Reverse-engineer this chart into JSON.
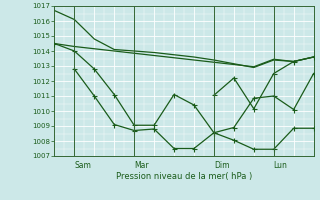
{
  "bg_color": "#cce8e8",
  "grid_color": "#aadddd",
  "line_color": "#1a5c1a",
  "title": "Pression niveau de la mer( hPa )",
  "ylim": [
    1007,
    1017
  ],
  "yticks": [
    1007,
    1008,
    1009,
    1010,
    1011,
    1012,
    1013,
    1014,
    1015,
    1016,
    1017
  ],
  "x_tick_labels": [
    "Sam",
    "Mar",
    "Dim",
    "Lun"
  ],
  "x_tick_pos": [
    2,
    8,
    16,
    22
  ],
  "xlim": [
    0,
    26
  ],
  "lines": [
    {
      "x": [
        0,
        2,
        4,
        6,
        8,
        10,
        12,
        14,
        16,
        18,
        20,
        22,
        24,
        26
      ],
      "y": [
        1016.7,
        1016.1,
        1014.8,
        1014.1,
        1014.0,
        1013.9,
        1013.75,
        1013.6,
        1013.4,
        1013.15,
        1012.9,
        1013.4,
        1013.3,
        1013.6
      ],
      "markers": false,
      "lw": 0.9
    },
    {
      "x": [
        0,
        2,
        4,
        6,
        8,
        10,
        12,
        14,
        16,
        18,
        20,
        22,
        24,
        26
      ],
      "y": [
        1014.5,
        1014.3,
        1014.15,
        1014.0,
        1013.85,
        1013.7,
        1013.55,
        1013.4,
        1013.25,
        1013.1,
        1012.95,
        1013.45,
        1013.3,
        1013.6
      ],
      "markers": false,
      "lw": 0.9
    },
    {
      "x": [
        0,
        2,
        4,
        6,
        8,
        10,
        12,
        14,
        16,
        18,
        20,
        22,
        24,
        26
      ],
      "y": [
        1014.5,
        1014.0,
        1012.8,
        1011.1,
        1009.05,
        1009.05,
        1011.1,
        1010.4,
        1008.55,
        1008.05,
        1007.45,
        1007.45,
        1008.85,
        1008.85
      ],
      "markers": true,
      "lw": 0.9
    },
    {
      "x": [
        2,
        4,
        6,
        8,
        10,
        12,
        14,
        16,
        18,
        20,
        22,
        24,
        26
      ],
      "y": [
        1012.8,
        1011.0,
        1009.1,
        1008.7,
        1008.8,
        1007.5,
        1007.5,
        1008.55,
        1008.9,
        1010.85,
        1011.0,
        1010.1,
        1012.5
      ],
      "markers": true,
      "lw": 0.9
    },
    {
      "x": [
        16,
        18,
        20,
        22,
        24,
        26
      ],
      "y": [
        1011.05,
        1012.2,
        1010.15,
        1012.5,
        1013.3,
        1013.6
      ],
      "markers": true,
      "lw": 0.9
    }
  ]
}
